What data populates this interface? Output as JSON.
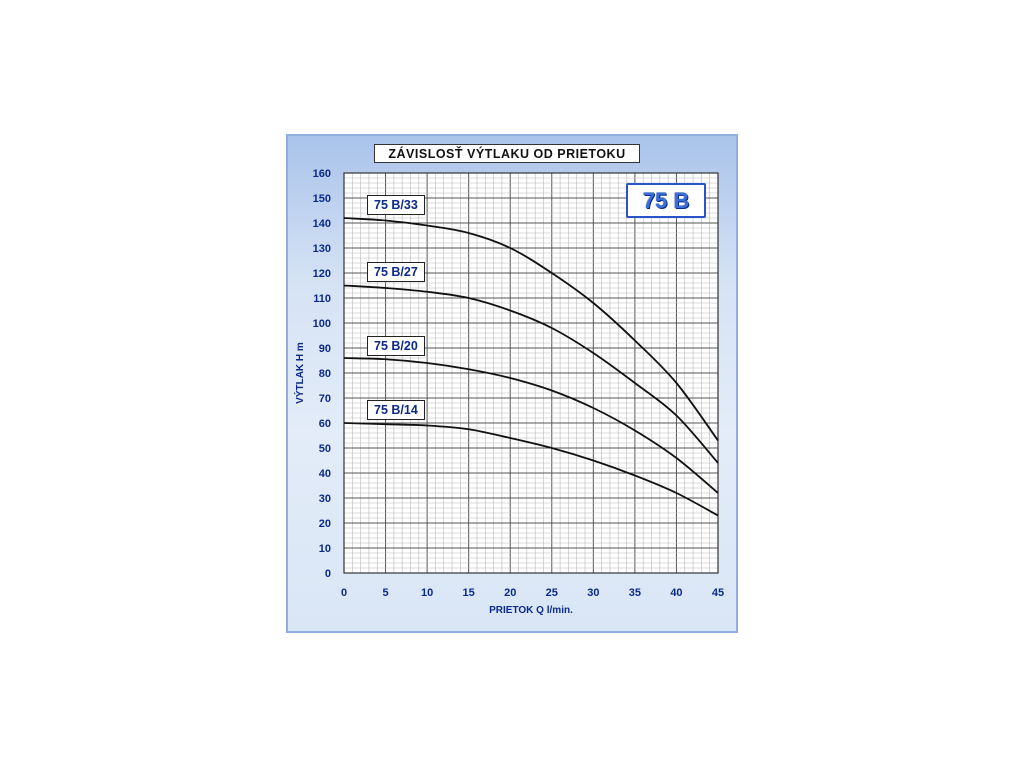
{
  "colors": {
    "panel_top": "#a9c3ea",
    "panel_bottom": "#e3ecf8",
    "axis_text": "#0c2a8a",
    "badge_text": "#3b6fd6",
    "curve": "#111111"
  },
  "badge": "75 B",
  "chart_data": {
    "type": "line",
    "title": "ZÁVISLOSŤ  VÝTLAKU  OD  PRIETOKU",
    "xlabel": "PRIETOK  Q   l/min.",
    "ylabel": "VÝTLAK  H  m",
    "xlim": [
      0,
      45
    ],
    "ylim": [
      0,
      160
    ],
    "x_ticks": [
      0,
      5,
      10,
      15,
      20,
      25,
      30,
      35,
      40,
      45
    ],
    "y_ticks": [
      0,
      10,
      20,
      30,
      40,
      50,
      60,
      70,
      80,
      90,
      100,
      110,
      120,
      130,
      140,
      150,
      160
    ],
    "grid": true,
    "series": [
      {
        "name": "75 B/33",
        "x": [
          0,
          5,
          10,
          15,
          20,
          25,
          30,
          35,
          40,
          45
        ],
        "values": [
          142,
          141,
          139,
          136,
          130,
          120,
          108,
          93,
          76,
          53
        ]
      },
      {
        "name": "75 B/27",
        "x": [
          0,
          5,
          10,
          15,
          20,
          25,
          30,
          35,
          40,
          45
        ],
        "values": [
          115,
          114,
          112.5,
          110,
          105,
          98,
          88,
          76,
          63,
          44
        ]
      },
      {
        "name": "75 B/20",
        "x": [
          0,
          5,
          10,
          15,
          20,
          25,
          30,
          35,
          40,
          45
        ],
        "values": [
          86,
          85.5,
          84,
          81.5,
          78,
          73,
          66,
          57,
          46,
          32
        ]
      },
      {
        "name": "75 B/14",
        "x": [
          0,
          5,
          10,
          15,
          20,
          25,
          30,
          35,
          40,
          45
        ],
        "values": [
          60,
          59.5,
          59,
          57.5,
          54,
          50,
          45,
          39,
          32,
          23
        ]
      }
    ]
  }
}
